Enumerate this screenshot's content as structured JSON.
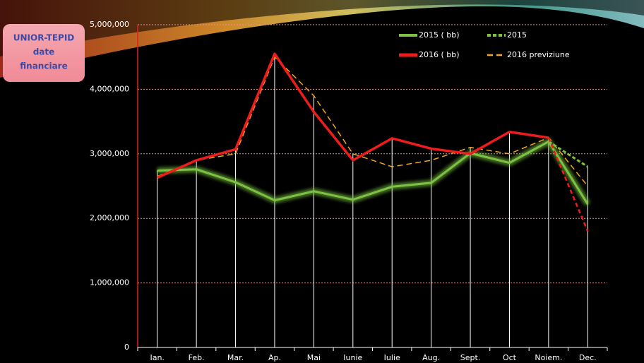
{
  "badge": {
    "lines": [
      "UNIOR-TEPID",
      "date",
      "financiare"
    ]
  },
  "chart_data": {
    "type": "line",
    "categories": [
      "Ian.",
      "Feb.",
      "Mar.",
      "Ap.",
      "Mai",
      "Iunie",
      "Iulie",
      "Aug.",
      "Sept.",
      "Oct",
      "Noiem.",
      "Dec."
    ],
    "series": [
      {
        "name": "2015 ( bb)",
        "color": "#7cc242",
        "style": "glow",
        "values": [
          2740000,
          2760000,
          2560000,
          2280000,
          2420000,
          2290000,
          2490000,
          2550000,
          3010000,
          2860000,
          3190000,
          2220000
        ]
      },
      {
        "name": "2015",
        "color": "#7cc242",
        "style": "dotted",
        "values": [
          null,
          null,
          null,
          null,
          null,
          null,
          null,
          null,
          null,
          null,
          3190000,
          2800000
        ]
      },
      {
        "name": "2016 ( bb)",
        "color": "#ee1c1c",
        "style": "solid",
        "values": [
          2630000,
          2900000,
          3070000,
          4550000,
          3650000,
          2900000,
          3240000,
          3080000,
          3000000,
          3340000,
          3250000,
          null
        ]
      },
      {
        "name": "2016 previziune",
        "color": "#f2a61a",
        "style": "dashed",
        "values": [
          2650000,
          2900000,
          3000000,
          4500000,
          3900000,
          3000000,
          2800000,
          2900000,
          3100000,
          3000000,
          3250000,
          2500000
        ]
      },
      {
        "color": "#ee1c1c",
        "style": "reddash",
        "values": [
          null,
          null,
          null,
          null,
          null,
          null,
          null,
          null,
          null,
          null,
          3250000,
          1800000
        ]
      }
    ],
    "ylim": [
      0,
      5000000
    ],
    "yticks": [
      0,
      {
        "value": 1000000,
        "label": "1,000,000"
      },
      {
        "value": 2000000,
        "label": "2,000,000"
      },
      {
        "value": 3000000,
        "label": "3,000,000"
      },
      {
        "value": 4000000,
        "label": "4,000,000"
      },
      {
        "value": 5000000,
        "label": "5,000,000"
      }
    ],
    "grid": true
  }
}
